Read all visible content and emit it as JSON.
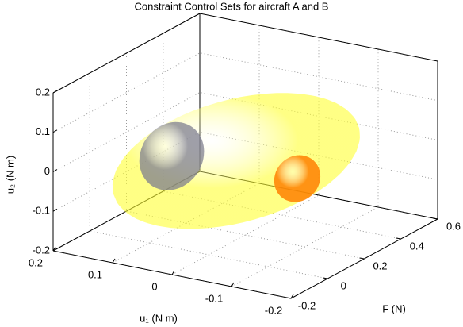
{
  "chart_data": {
    "type": "ellipsoid3d",
    "title": "Constraint Control Sets for aircraft A and B",
    "xlabel": "u₁ (N m)",
    "ylabel": "F (N)",
    "zlabel": "u₂ (N m)",
    "xlim": [
      -0.2,
      0.2
    ],
    "ylim": [
      -0.2,
      0.6
    ],
    "zlim": [
      -0.2,
      0.2
    ],
    "xticks": [
      -0.2,
      -0.1,
      0,
      0.1,
      0.2
    ],
    "yticks": [
      -0.2,
      0,
      0.2,
      0.4,
      0.6
    ],
    "zticks": [
      -0.2,
      -0.1,
      0,
      0.1,
      0.2
    ],
    "grid": true,
    "surfaces": [
      {
        "color": "#ffff33",
        "opacity": 0.6,
        "center": [
          0.0,
          0.15,
          0.0
        ],
        "radii": [
          0.14,
          0.5,
          0.11
        ]
      },
      {
        "color": "#7f7f8f",
        "opacity": 0.75,
        "center": [
          0.09,
          0.09,
          0.0
        ],
        "radii": [
          0.04,
          0.12,
          0.08
        ]
      },
      {
        "color": "#ff8000",
        "opacity": 0.85,
        "center": [
          -0.115,
          0.11,
          0.0
        ],
        "radii": [
          0.03,
          0.08,
          0.055
        ]
      }
    ]
  }
}
